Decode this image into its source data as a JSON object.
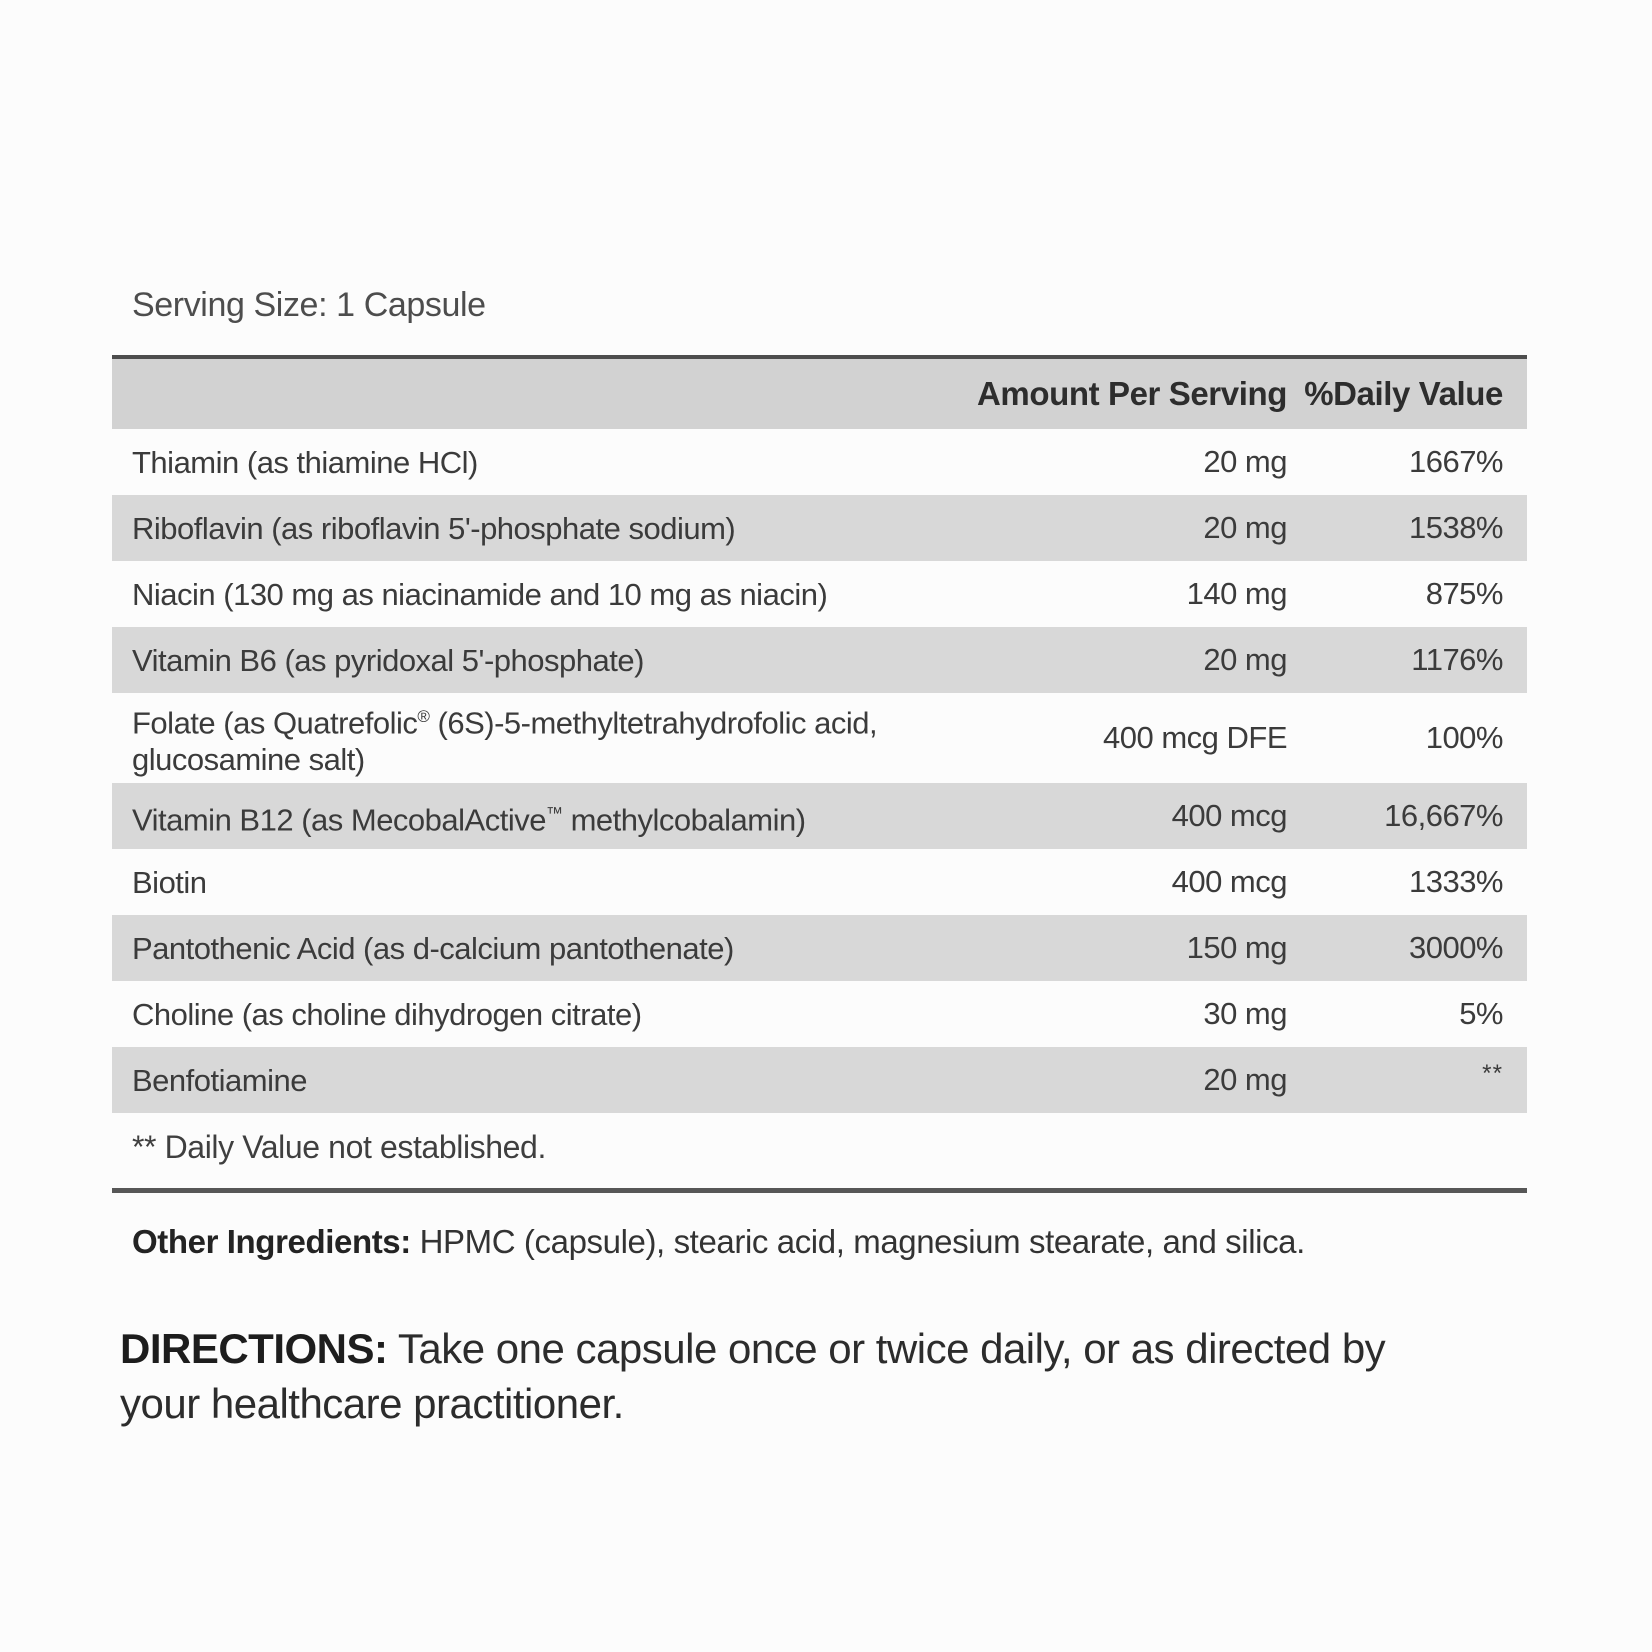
{
  "label": {
    "serving_size": "Serving Size: 1 Capsule",
    "table": {
      "headers": {
        "amount": "Amount Per Serving",
        "daily_value": "%Daily Value"
      },
      "rows": [
        {
          "name": "Thiamin (as thiamine HCl)",
          "amount": "20 mg",
          "dv": "1667%"
        },
        {
          "name": "Riboflavin (as riboflavin 5'-phosphate sodium)",
          "amount": "20 mg",
          "dv": "1538%"
        },
        {
          "name": "Niacin (130 mg as niacinamide and 10 mg as niacin)",
          "amount": "140 mg",
          "dv": "875%"
        },
        {
          "name": "Vitamin B6 (as pyridoxal 5'-phosphate)",
          "amount": "20 mg",
          "dv": "1176%"
        },
        {
          "name": "Folate (as Quatrefolic® (6S)-5-methyltetrahydrofolic acid, glucosamine salt)",
          "amount": "400 mcg DFE",
          "dv": "100%"
        },
        {
          "name": "Vitamin B12 (as MecobalActive™ methylcobalamin)",
          "amount": "400 mcg",
          "dv": "16,667%"
        },
        {
          "name": "Biotin",
          "amount": "400 mcg",
          "dv": "1333%"
        },
        {
          "name": "Pantothenic Acid (as d-calcium pantothenate)",
          "amount": "150 mg",
          "dv": "3000%"
        },
        {
          "name": "Choline (as choline dihydrogen citrate)",
          "amount": "30 mg",
          "dv": "5%"
        },
        {
          "name": "Benfotiamine",
          "amount": "20 mg",
          "dv": "**"
        }
      ],
      "footnote": "** Daily Value not established."
    },
    "other_ingredients": {
      "label": "Other Ingredients:",
      "text": " HPMC (capsule), stearic acid, magnesium stearate, and silica."
    },
    "directions": {
      "label": "DIRECTIONS:",
      "text": " Take one capsule once or twice daily, or as directed by your healthcare practitioner."
    },
    "colors": {
      "row_shade": "#d8d8d8",
      "header_shade": "#d2d2d2",
      "text": "#3b3b3b",
      "rule": "#4d4d4d"
    }
  }
}
